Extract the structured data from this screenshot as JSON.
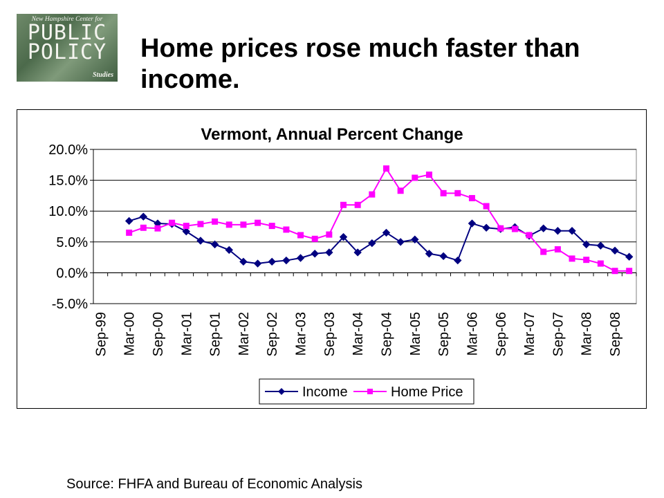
{
  "logo": {
    "org": "New Hampshire Center for",
    "word1": "PUBLIC",
    "word2": "POLICY",
    "sub": "Studies"
  },
  "slide": {
    "title": "Home prices rose much faster than income.",
    "source": "Source: FHFA and Bureau of Economic Analysis"
  },
  "chart_data": {
    "type": "line",
    "title": "Vermont, Annual Percent Change",
    "xlabel": "",
    "ylabel": "",
    "ylim": [
      -5,
      20
    ],
    "yticks": [
      "20.0%",
      "15.0%",
      "10.0%",
      "5.0%",
      "0.0%",
      "-5.0%"
    ],
    "ytick_values": [
      20,
      15,
      10,
      5,
      0,
      -5
    ],
    "categories": [
      "Sep-99",
      "Dec-99",
      "Mar-00",
      "Jun-00",
      "Sep-00",
      "Dec-00",
      "Mar-01",
      "Jun-01",
      "Sep-01",
      "Dec-01",
      "Mar-02",
      "Jun-02",
      "Sep-02",
      "Dec-02",
      "Mar-03",
      "Jun-03",
      "Sep-03",
      "Dec-03",
      "Mar-04",
      "Jun-04",
      "Sep-04",
      "Dec-04",
      "Mar-05",
      "Jun-05",
      "Sep-05",
      "Dec-05",
      "Mar-06",
      "Jun-06",
      "Sep-06",
      "Dec-06",
      "Mar-07",
      "Jun-07",
      "Sep-07",
      "Dec-07",
      "Mar-08",
      "Jun-08",
      "Sep-08",
      "Dec-08"
    ],
    "x_tick_labels": [
      "Sep-99",
      "Mar-00",
      "Sep-00",
      "Mar-01",
      "Sep-01",
      "Mar-02",
      "Sep-02",
      "Mar-03",
      "Sep-03",
      "Mar-04",
      "Sep-04",
      "Mar-05",
      "Sep-05",
      "Mar-06",
      "Sep-06",
      "Mar-07",
      "Sep-07",
      "Mar-08",
      "Sep-08"
    ],
    "grid": "horizontal",
    "legend_position": "bottom",
    "series": [
      {
        "name": "Income",
        "color": "#000080",
        "marker": "diamond",
        "values": [
          null,
          null,
          8.4,
          9.1,
          8.0,
          7.9,
          6.7,
          5.2,
          4.6,
          3.7,
          1.8,
          1.5,
          1.8,
          2.0,
          2.4,
          3.1,
          3.3,
          5.8,
          3.3,
          4.8,
          6.5,
          5.0,
          5.4,
          3.1,
          2.7,
          2.0,
          8.0,
          7.3,
          7.1,
          7.4,
          6.0,
          7.2,
          6.8,
          6.8,
          4.6,
          4.4,
          3.6,
          2.6
        ]
      },
      {
        "name": "Home Price",
        "color": "#ff00ff",
        "marker": "square",
        "values": [
          null,
          null,
          6.5,
          7.3,
          7.2,
          8.1,
          7.6,
          7.9,
          8.3,
          7.8,
          7.8,
          8.1,
          7.6,
          7.0,
          6.1,
          5.5,
          6.2,
          11.0,
          11.0,
          12.7,
          16.9,
          13.3,
          15.4,
          15.9,
          12.9,
          12.9,
          12.1,
          10.8,
          7.2,
          7.1,
          6.1,
          3.4,
          3.8,
          2.3,
          2.1,
          1.5,
          0.3,
          0.3
        ]
      }
    ]
  }
}
